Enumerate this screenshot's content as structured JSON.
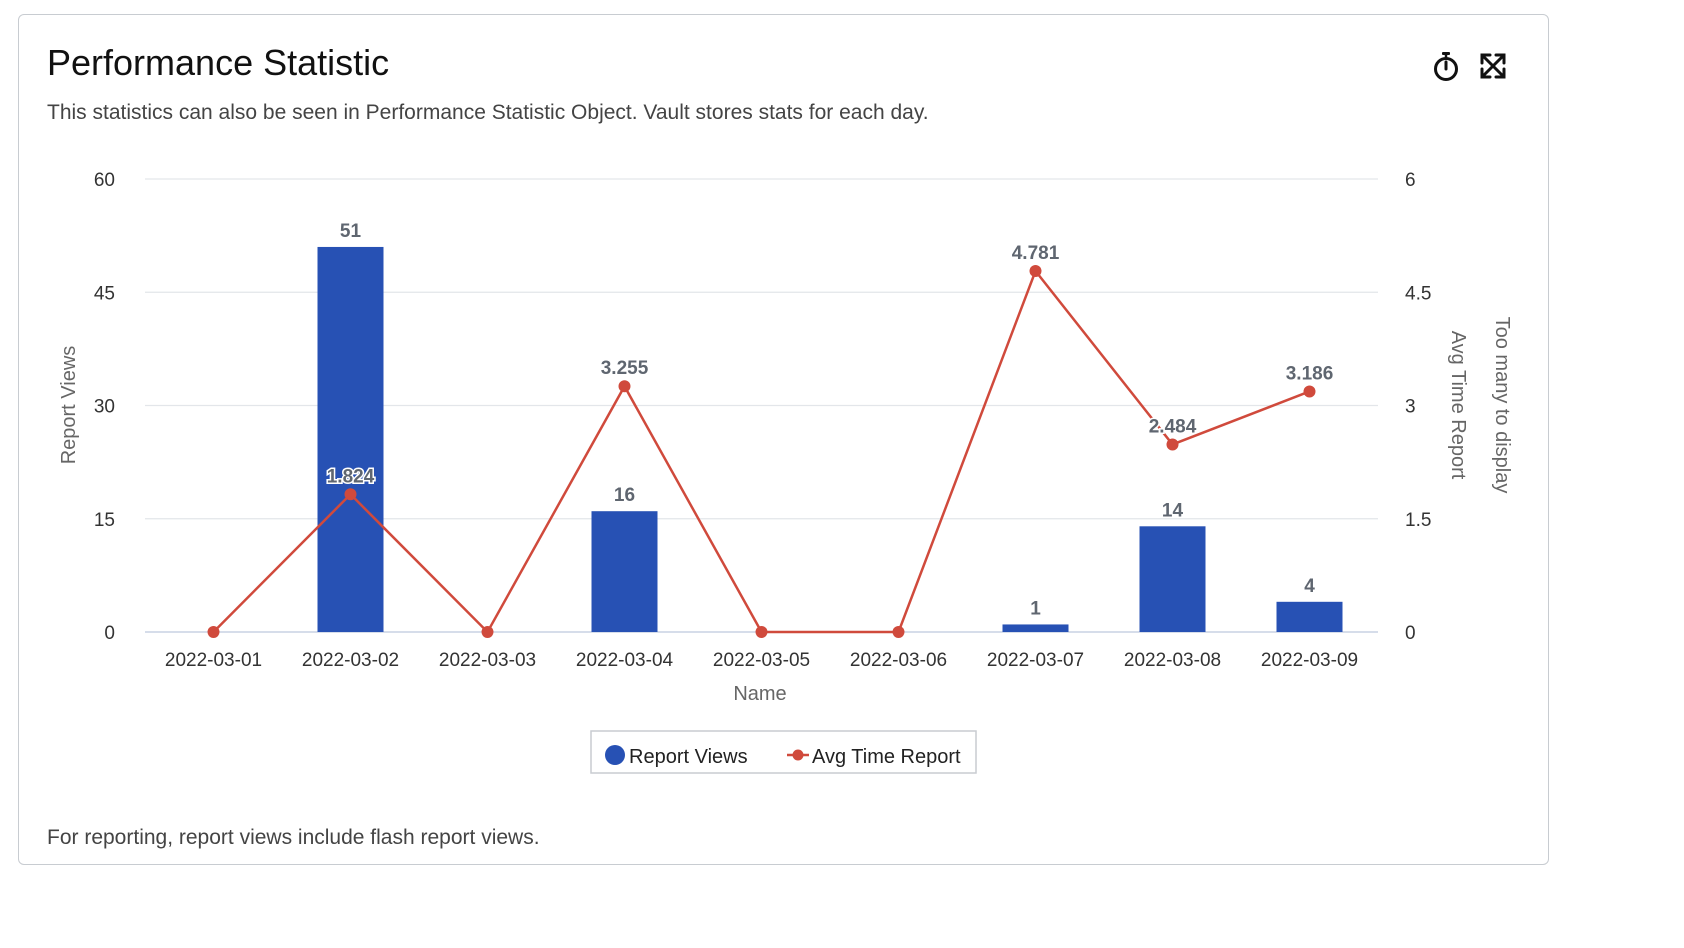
{
  "card": {
    "title": "Performance Statistic",
    "subtitle": "This statistics can also be seen in Performance Statistic Object. Vault stores stats for each day.",
    "footer": "For reporting, report views include flash report views.",
    "icons": [
      "stopwatch-icon",
      "expand-icon"
    ]
  },
  "colors": {
    "bar": "#2751b4",
    "line": "#d04a3c",
    "grid": "#e3e6ea",
    "baseline": "#c9d2e4"
  },
  "chart_data": {
    "type": "bar",
    "categories": [
      "2022-03-01",
      "2022-03-02",
      "2022-03-03",
      "2022-03-04",
      "2022-03-05",
      "2022-03-06",
      "2022-03-07",
      "2022-03-08",
      "2022-03-09"
    ],
    "series": [
      {
        "name": "Report Views",
        "type": "bar",
        "axis": "left",
        "values": [
          0,
          51,
          0,
          16,
          0,
          0,
          1,
          14,
          4
        ],
        "labels": [
          "",
          "51",
          "",
          "16",
          "",
          "",
          "1",
          "14",
          "4"
        ]
      },
      {
        "name": "Avg Time Report",
        "type": "line",
        "axis": "right",
        "values": [
          0,
          1.824,
          0,
          3.255,
          0,
          0,
          4.781,
          2.484,
          3.186
        ],
        "labels": [
          "",
          "1.824",
          "",
          "3.255",
          "",
          "",
          "4.781",
          "2.484",
          "3.186"
        ]
      }
    ],
    "xlabel": "Name",
    "ylabel": "Report Views",
    "y2label": "Avg Time Report",
    "y3label": "Too many to display",
    "ylim": [
      0,
      60
    ],
    "y2lim": [
      0,
      6
    ],
    "yticks": [
      "0",
      "15",
      "30",
      "45",
      "60"
    ],
    "y2ticks": [
      "0",
      "1.5",
      "3",
      "4.5",
      "6"
    ],
    "grid": true,
    "legend": {
      "position": "bottom-center",
      "items": [
        "Report Views",
        "Avg Time Report"
      ]
    }
  }
}
